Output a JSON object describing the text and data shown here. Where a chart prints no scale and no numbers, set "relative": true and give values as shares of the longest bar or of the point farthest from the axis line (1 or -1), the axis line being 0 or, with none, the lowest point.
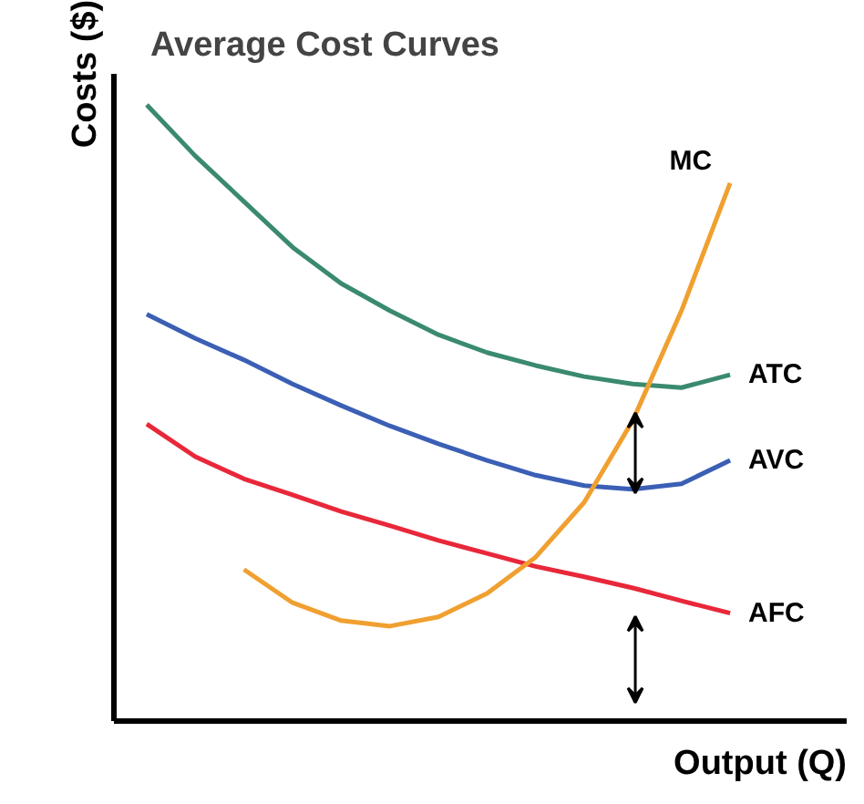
{
  "chart_data": {
    "type": "line",
    "title": "Average Cost Curves",
    "xlabel": "Output (Q)",
    "ylabel": "Costs ($)",
    "relative": true,
    "grid": false,
    "categories": [
      null,
      null,
      null,
      null,
      null,
      null,
      null,
      null,
      null,
      null,
      null,
      null,
      null
    ],
    "series": [
      {
        "name": "ATC",
        "color": "#3a8a6e",
        "values": [
          1.0,
          0.917,
          0.843,
          0.769,
          0.71,
          0.666,
          0.627,
          0.598,
          0.577,
          0.559,
          0.547,
          0.541,
          0.562
        ]
      },
      {
        "name": "AVC",
        "color": "#3b5fb5",
        "values": [
          0.66,
          0.621,
          0.586,
          0.547,
          0.512,
          0.479,
          0.45,
          0.423,
          0.399,
          0.382,
          0.376,
          0.385,
          0.423
        ]
      },
      {
        "name": "AFC",
        "color": "#e8283a",
        "values": [
          0.482,
          0.429,
          0.393,
          0.367,
          0.34,
          0.317,
          0.293,
          0.272,
          0.251,
          0.234,
          0.216,
          0.195,
          0.175
        ]
      },
      {
        "name": "MC",
        "color": "#f0a030",
        "values": [
          null,
          null,
          0.246,
          0.192,
          0.163,
          0.154,
          0.169,
          0.207,
          0.266,
          0.355,
          0.488,
          0.666,
          0.873
        ]
      }
    ]
  }
}
